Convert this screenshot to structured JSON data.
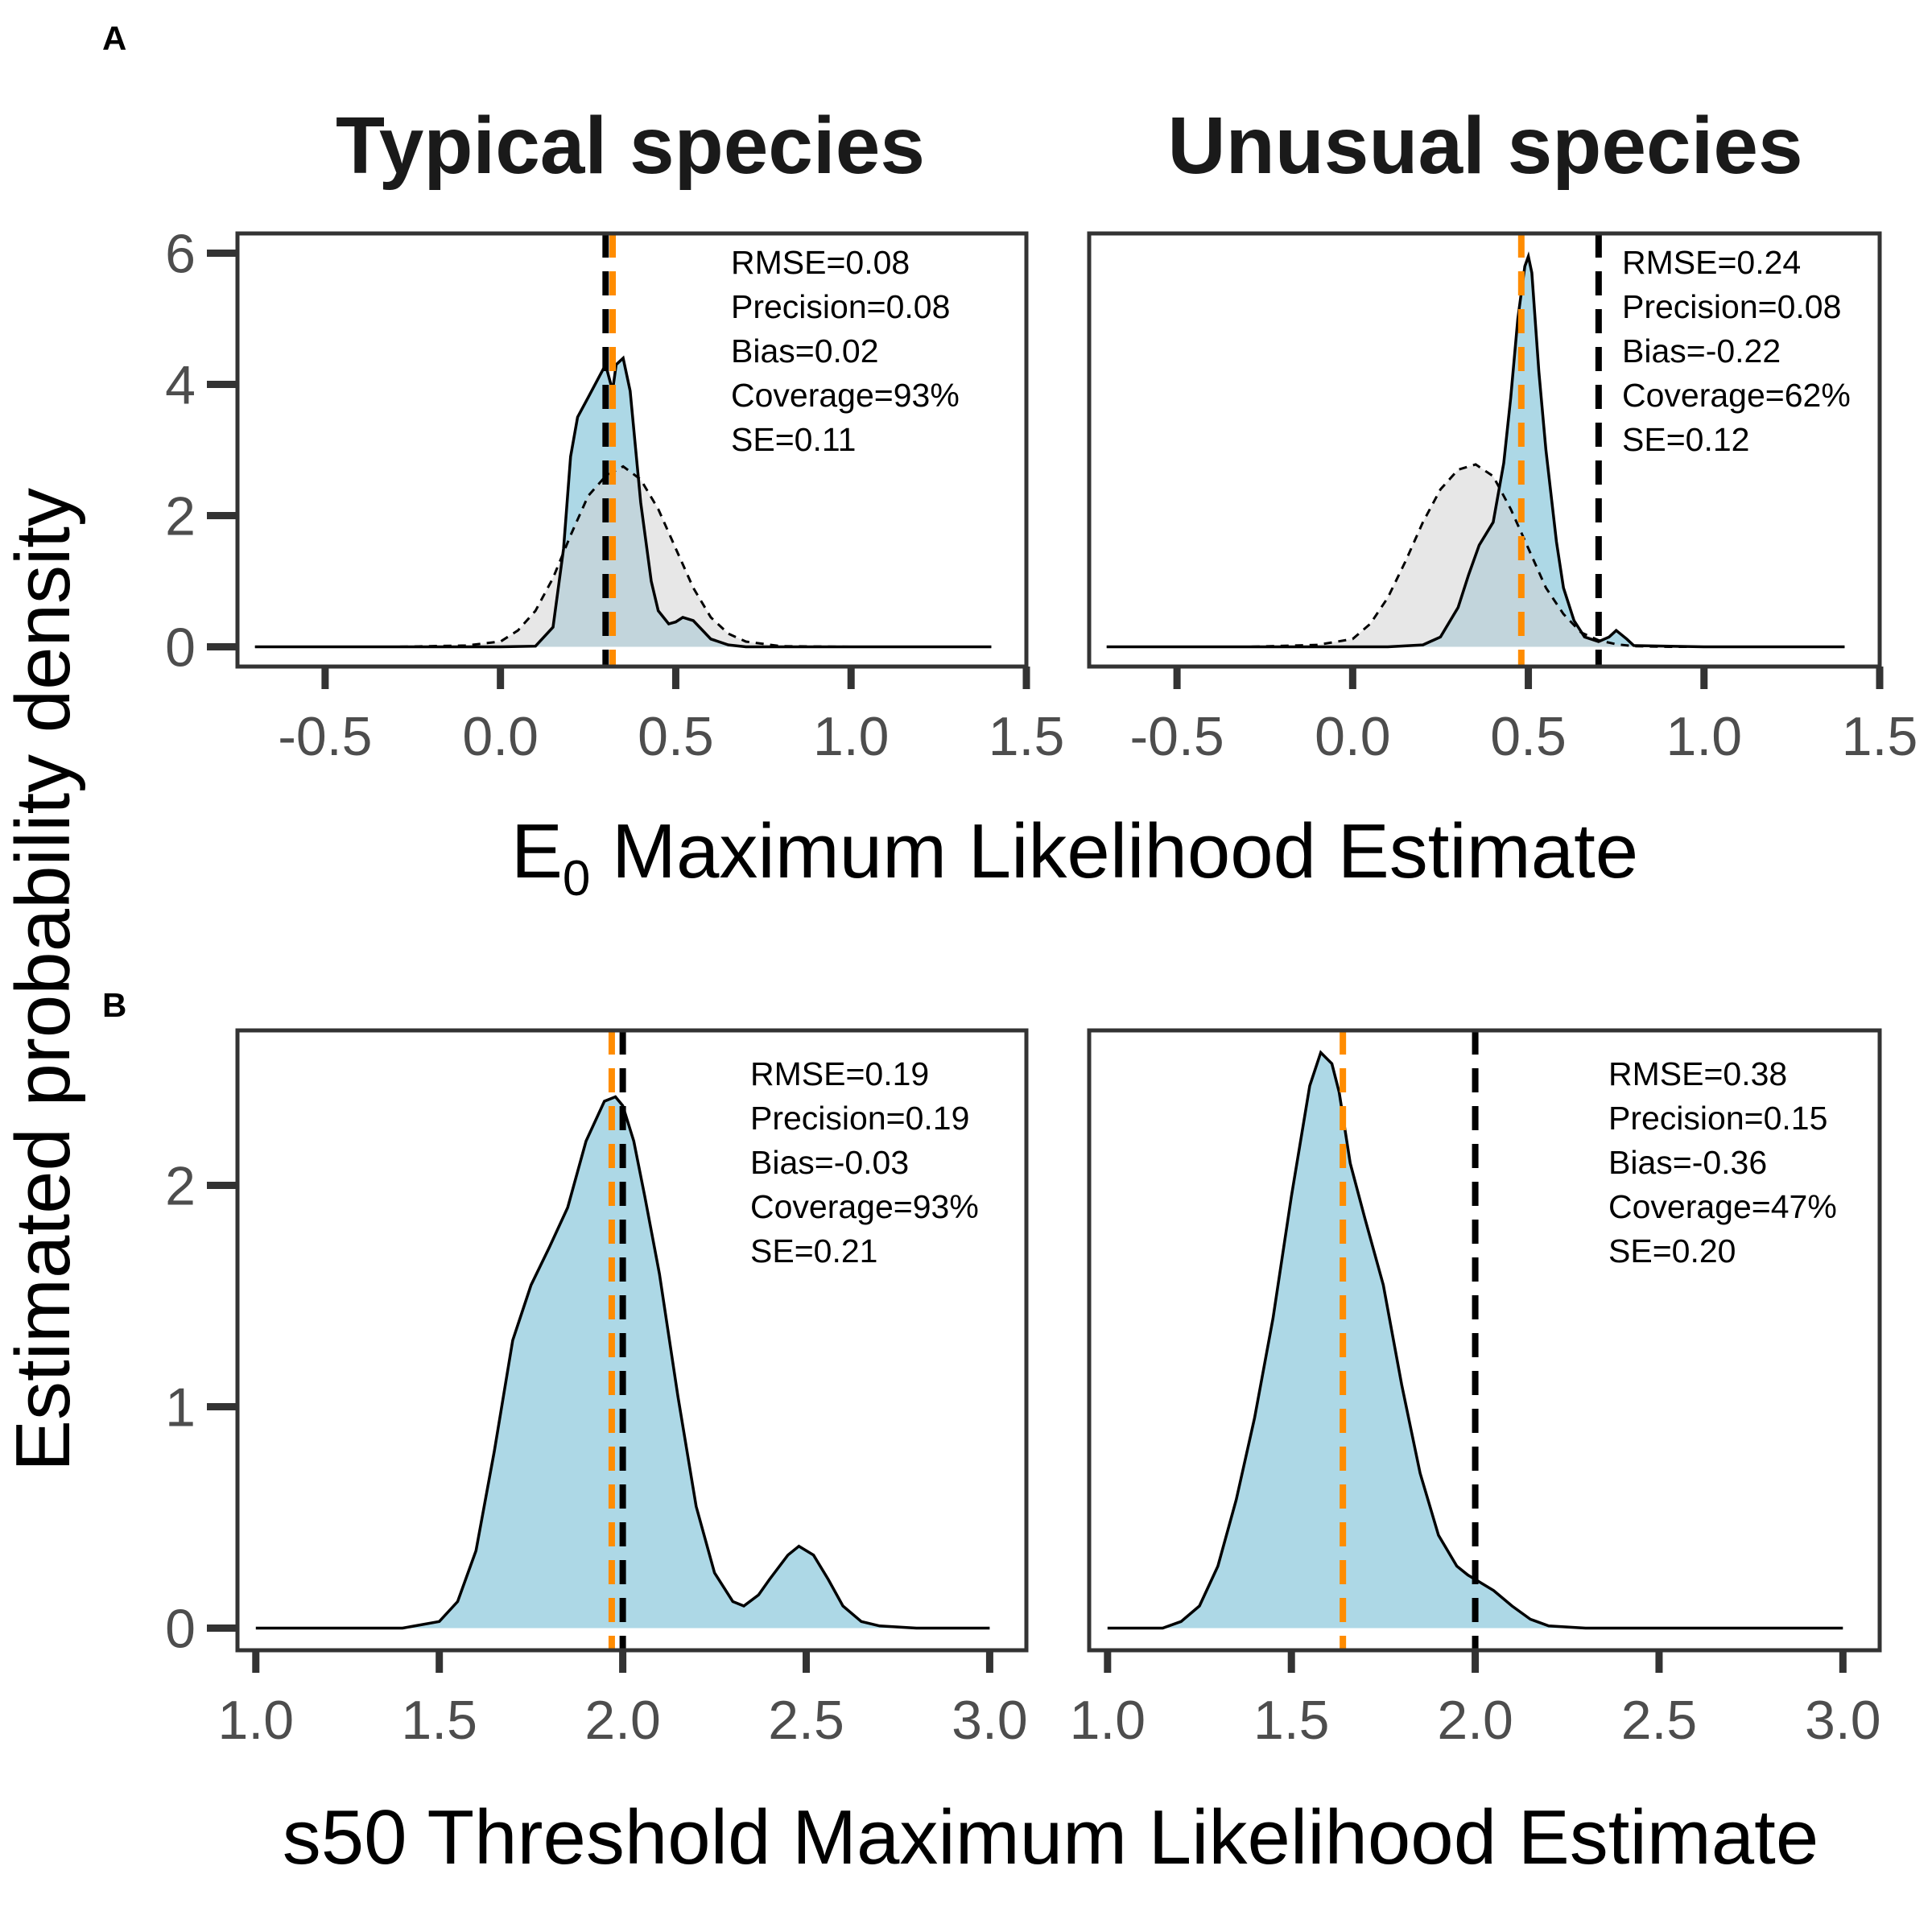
{
  "figure": {
    "tag_a": "A",
    "tag_b": "B",
    "facet_titles": [
      "Typical species",
      "Unusual species"
    ],
    "y_axis_title": "Estimated probability density",
    "x_axis_title_a_main": "E",
    "x_axis_title_a_sub": "0",
    "x_axis_title_a_rest": " Maximum Likelihood Estimate",
    "x_axis_title_b": "s50 Threshold Maximum Likelihood Estimate"
  },
  "colors": {
    "estimate_fill": "#add8e6",
    "prior_fill": "#d3d3d3",
    "true_value_line": "#000000",
    "median_line": "#ff8c00",
    "curve": "#000000"
  },
  "chart_data": [
    {
      "id": "A-typical",
      "type": "area",
      "row": "A",
      "facet": "Typical species",
      "xlim": [
        -0.75,
        1.5
      ],
      "ylim": [
        -0.3,
        6.3
      ],
      "x_ticks": [
        -0.5,
        0.0,
        0.5,
        1.0,
        1.5
      ],
      "x_tick_labels": [
        "-0.5",
        "0.0",
        "0.5",
        "1.0",
        "1.5"
      ],
      "y_ticks": [
        0,
        2,
        4,
        6
      ],
      "y_tick_labels": [
        "0",
        "2",
        "4",
        "6"
      ],
      "estimate_density": {
        "x": [
          -0.7,
          0.0,
          0.1,
          0.15,
          0.18,
          0.2,
          0.22,
          0.25,
          0.28,
          0.3,
          0.32,
          0.33,
          0.35,
          0.37,
          0.4,
          0.43,
          0.45,
          0.48,
          0.5,
          0.52,
          0.55,
          0.6,
          0.65,
          0.7,
          1.0,
          1.4
        ],
        "y": [
          0,
          0,
          0.01,
          0.3,
          1.5,
          2.9,
          3.5,
          3.8,
          4.1,
          4.3,
          3.9,
          4.3,
          4.4,
          3.9,
          2.2,
          1.0,
          0.55,
          0.35,
          0.38,
          0.45,
          0.4,
          0.12,
          0.03,
          0.0,
          0,
          0
        ]
      },
      "prior_density": {
        "x": [
          -0.7,
          -0.3,
          -0.1,
          0.0,
          0.05,
          0.1,
          0.15,
          0.2,
          0.25,
          0.3,
          0.35,
          0.4,
          0.45,
          0.5,
          0.55,
          0.6,
          0.65,
          0.7,
          0.8,
          1.0,
          1.4
        ],
        "y": [
          0,
          0,
          0.02,
          0.08,
          0.25,
          0.55,
          1.05,
          1.7,
          2.3,
          2.6,
          2.75,
          2.55,
          2.1,
          1.5,
          0.9,
          0.45,
          0.2,
          0.08,
          0.01,
          0,
          0
        ]
      },
      "true_value": 0.3,
      "median_value": 0.32,
      "stats": [
        "RMSE=0.08",
        "Precision=0.08",
        "Bias=0.02",
        "Coverage=93%",
        "SE=0.11"
      ]
    },
    {
      "id": "A-unusual",
      "type": "area",
      "row": "A",
      "facet": "Unusual species",
      "xlim": [
        -0.75,
        1.5
      ],
      "ylim": [
        -0.3,
        6.3
      ],
      "x_ticks": [
        -0.5,
        0.0,
        0.5,
        1.0,
        1.5
      ],
      "x_tick_labels": [
        "-0.5",
        "0.0",
        "0.5",
        "1.0",
        "1.5"
      ],
      "y_ticks": [
        0,
        2,
        4,
        6
      ],
      "y_tick_labels": [
        "0",
        "2",
        "4",
        "6"
      ],
      "estimate_density": {
        "x": [
          -0.7,
          0.1,
          0.2,
          0.25,
          0.3,
          0.33,
          0.36,
          0.4,
          0.43,
          0.45,
          0.47,
          0.49,
          0.5,
          0.51,
          0.53,
          0.55,
          0.58,
          0.6,
          0.63,
          0.66,
          0.7,
          0.73,
          0.75,
          0.78,
          0.8,
          1.0,
          1.4
        ],
        "y": [
          0,
          0,
          0.03,
          0.15,
          0.6,
          1.1,
          1.55,
          1.9,
          2.8,
          3.8,
          5.0,
          5.8,
          5.95,
          5.7,
          4.2,
          3.0,
          1.6,
          0.9,
          0.4,
          0.15,
          0.08,
          0.15,
          0.25,
          0.12,
          0.02,
          0,
          0
        ]
      },
      "prior_density": {
        "x": [
          -0.7,
          -0.3,
          -0.1,
          0.0,
          0.05,
          0.1,
          0.15,
          0.2,
          0.25,
          0.3,
          0.35,
          0.4,
          0.45,
          0.5,
          0.55,
          0.6,
          0.65,
          0.7,
          0.75,
          0.8,
          0.9,
          1.4
        ],
        "y": [
          0,
          0,
          0.03,
          0.12,
          0.35,
          0.75,
          1.3,
          1.9,
          2.4,
          2.7,
          2.78,
          2.6,
          2.1,
          1.5,
          0.9,
          0.5,
          0.22,
          0.1,
          0.04,
          0.01,
          0,
          0
        ]
      },
      "true_value": 0.7,
      "median_value": 0.48,
      "stats": [
        "RMSE=0.24",
        "Precision=0.08",
        "Bias=-0.22",
        "Coverage=62%",
        "SE=0.12"
      ]
    },
    {
      "id": "B-typical",
      "type": "area",
      "row": "B",
      "facet": "Typical species",
      "xlim": [
        0.95,
        3.1
      ],
      "ylim": [
        -0.1,
        2.7
      ],
      "x_ticks": [
        1.0,
        1.5,
        2.0,
        2.5,
        3.0
      ],
      "x_tick_labels": [
        "1.0",
        "1.5",
        "2.0",
        "2.5",
        "3.0"
      ],
      "y_ticks": [
        0,
        1,
        2
      ],
      "y_tick_labels": [
        "0",
        "1",
        "2"
      ],
      "estimate_density": {
        "x": [
          1.0,
          1.4,
          1.5,
          1.55,
          1.6,
          1.65,
          1.7,
          1.75,
          1.8,
          1.85,
          1.9,
          1.95,
          1.98,
          2.0,
          2.03,
          2.06,
          2.1,
          2.15,
          2.2,
          2.25,
          2.3,
          2.33,
          2.37,
          2.4,
          2.45,
          2.48,
          2.52,
          2.56,
          2.6,
          2.65,
          2.7,
          2.8,
          3.0
        ],
        "y": [
          0,
          0,
          0.03,
          0.12,
          0.35,
          0.8,
          1.3,
          1.55,
          1.72,
          1.9,
          2.2,
          2.38,
          2.4,
          2.36,
          2.2,
          1.95,
          1.6,
          1.05,
          0.55,
          0.25,
          0.12,
          0.1,
          0.15,
          0.22,
          0.33,
          0.37,
          0.33,
          0.22,
          0.1,
          0.03,
          0.01,
          0,
          0
        ]
      },
      "true_value": 2.0,
      "median_value": 1.97,
      "stats": [
        "RMSE=0.19",
        "Precision=0.19",
        "Bias=-0.03",
        "Coverage=93%",
        "SE=0.21"
      ]
    },
    {
      "id": "B-unusual",
      "type": "area",
      "row": "B",
      "facet": "Unusual species",
      "xlim": [
        0.95,
        3.1
      ],
      "ylim": [
        -0.1,
        2.7
      ],
      "x_ticks": [
        1.0,
        1.5,
        2.0,
        2.5,
        3.0
      ],
      "x_tick_labels": [
        "1.0",
        "1.5",
        "2.0",
        "2.5",
        "3.0"
      ],
      "y_ticks": [
        0,
        1,
        2
      ],
      "y_tick_labels": [
        "0",
        "1",
        "2"
      ],
      "estimate_density": {
        "x": [
          1.0,
          1.15,
          1.2,
          1.25,
          1.3,
          1.35,
          1.4,
          1.45,
          1.5,
          1.55,
          1.58,
          1.61,
          1.63,
          1.66,
          1.7,
          1.75,
          1.8,
          1.85,
          1.9,
          1.95,
          1.98,
          2.0,
          2.05,
          2.1,
          2.15,
          2.2,
          2.3,
          3.0
        ],
        "y": [
          0,
          0,
          0.03,
          0.1,
          0.28,
          0.58,
          0.95,
          1.4,
          1.95,
          2.45,
          2.6,
          2.55,
          2.42,
          2.1,
          1.85,
          1.55,
          1.1,
          0.7,
          0.42,
          0.28,
          0.24,
          0.22,
          0.17,
          0.1,
          0.04,
          0.01,
          0,
          0
        ]
      },
      "true_value": 2.0,
      "median_value": 1.64,
      "stats": [
        "RMSE=0.38",
        "Precision=0.15",
        "Bias=-0.36",
        "Coverage=47%",
        "SE=0.20"
      ]
    }
  ]
}
